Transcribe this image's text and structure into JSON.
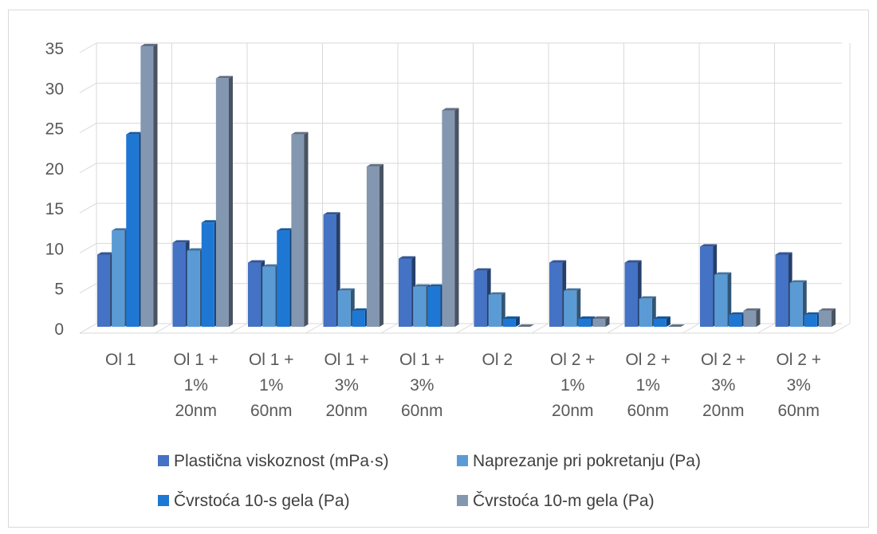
{
  "chart_data": {
    "type": "bar",
    "categories": [
      [
        "Ol 1"
      ],
      [
        "Ol 1 +",
        "1%",
        "20nm"
      ],
      [
        "Ol 1 +",
        "1%",
        "60nm"
      ],
      [
        "Ol 1 +",
        "3%",
        "20nm"
      ],
      [
        "Ol 1 +",
        "3%",
        "60nm"
      ],
      [
        "Ol 2"
      ],
      [
        "Ol 2 +",
        "1%",
        "20nm"
      ],
      [
        "Ol 2 +",
        "1%",
        "60nm"
      ],
      [
        "Ol 2 +",
        "3%",
        "20nm"
      ],
      [
        "Ol 2 +",
        "3%",
        "60nm"
      ]
    ],
    "series": [
      {
        "name": "Plastična viskoznost (mPa·s)",
        "color": "#4472c4",
        "values": [
          9,
          10.5,
          8,
          14,
          8.5,
          7,
          8,
          8,
          10,
          9
        ]
      },
      {
        "name": "Naprezanje pri pokretanju (Pa)",
        "color": "#5b9bd5",
        "values": [
          12,
          9.5,
          7.5,
          4.5,
          5,
          4,
          4.5,
          3.5,
          6.5,
          5.5
        ]
      },
      {
        "name": "Čvrstoća 10-s gela (Pa)",
        "color": "#1f77d4",
        "values": [
          24,
          13,
          12,
          2,
          5,
          1,
          1,
          1,
          1.5,
          1.5
        ]
      },
      {
        "name": "Čvrstoća 10-m gela (Pa)",
        "color": "#8497b0",
        "values": [
          35,
          31,
          24,
          20,
          27,
          0,
          1,
          0,
          2,
          2
        ]
      }
    ],
    "ylim": [
      0,
      35
    ],
    "yticks": [
      0,
      5,
      10,
      15,
      20,
      25,
      30,
      35
    ],
    "grid": true,
    "legend_position": "bottom",
    "style": "3d-clustered-column"
  }
}
